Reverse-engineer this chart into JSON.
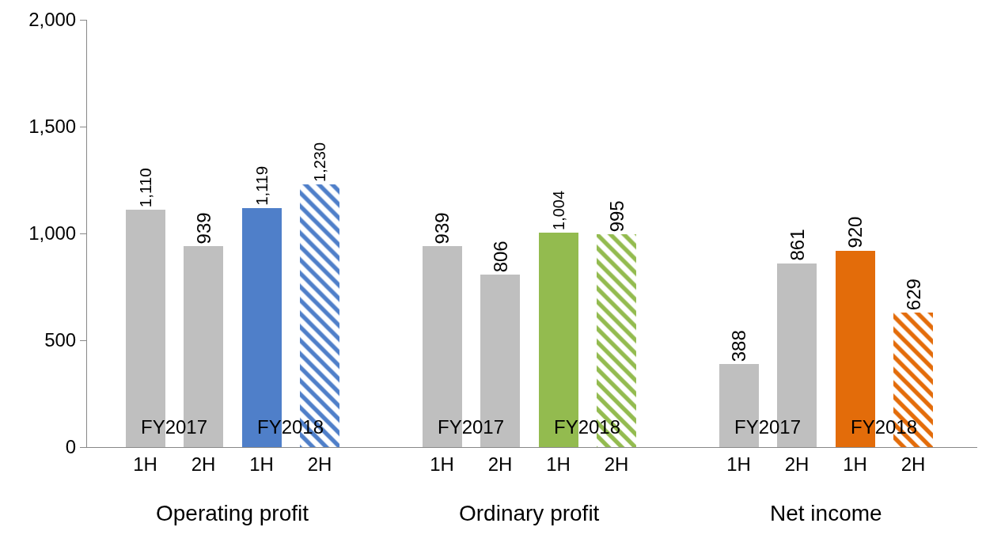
{
  "chart_data": {
    "type": "bar",
    "categories": [
      "1H",
      "2H",
      "1H",
      "2H",
      "1H",
      "2H",
      "1H",
      "2H",
      "1H",
      "2H",
      "1H",
      "2H"
    ],
    "series": [
      {
        "colors": [
          "#bfbfbf",
          "#bfbfbf",
          "#4f7fc9",
          "#4f7fc9",
          "#bfbfbf",
          "#bfbfbf",
          "#93bb4f",
          "#93bb4f",
          "#bfbfbf",
          "#bfbfbf",
          "#e36c0a",
          "#e36c0a"
        ],
        "values": [
          1110,
          939,
          1119,
          null,
          939,
          806,
          1004,
          null,
          388,
          861,
          920,
          null
        ],
        "value_labels": [
          "1,110",
          "939",
          "1,119",
          null,
          "939",
          "806",
          "1,004",
          null,
          "388",
          "861",
          "920",
          null
        ]
      },
      {
        "colors": [
          "#4f7fc9",
          "#4f7fc9",
          "#4f7fc9",
          "#4f7fc9",
          "#93bb4f",
          "#93bb4f",
          "#93bb4f",
          "#93bb4f",
          "#e36c0a",
          "#e36c0a",
          "#e36c0a",
          "#e36c0a"
        ],
        "values": [
          null,
          null,
          null,
          1230,
          null,
          null,
          null,
          995,
          null,
          null,
          null,
          629
        ],
        "value_labels": [
          null,
          null,
          null,
          "1,230",
          null,
          null,
          null,
          "995",
          null,
          null,
          null,
          "629"
        ]
      }
    ],
    "ylim": [
      0,
      2000
    ],
    "yticks": [
      0,
      500,
      {
        "value": 1000,
        "label": "1,000"
      },
      {
        "value": 1500,
        "label": "1,500"
      },
      {
        "value": 2000,
        "label": "2,000"
      }
    ],
    "grid": false,
    "annotations": [
      "FY2017",
      "FY2018",
      "FY2017",
      "FY2018",
      "FY2017",
      "FY2018",
      "Operating profit",
      "Ordinary profit",
      "Net income"
    ]
  }
}
